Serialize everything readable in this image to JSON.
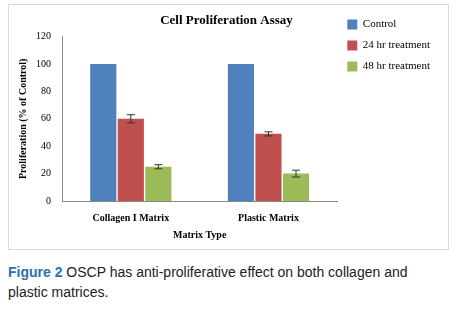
{
  "chart_data": {
    "type": "bar",
    "title": "Cell Proliferation Assay",
    "x_label": "Matrix Type",
    "y_label": "Proliferation (% of Control)",
    "categories": [
      "Collagen I Matrix",
      "Plastic Matrix"
    ],
    "series": [
      {
        "name": "Control",
        "color": "#4f81bd",
        "values": [
          100,
          100
        ]
      },
      {
        "name": "24 hr treatment",
        "color": "#c0504d",
        "values": [
          60,
          49
        ],
        "errors": [
          3,
          1.5
        ]
      },
      {
        "name": "48 hr treatment",
        "color": "#9bbb59",
        "values": [
          25,
          20
        ],
        "errors": [
          1.5,
          2.5
        ]
      }
    ],
    "ylim": [
      0,
      120
    ],
    "yticks": [
      0,
      20,
      40,
      60,
      80,
      100,
      120
    ],
    "grid": false,
    "legend": "right",
    "caption": {
      "label": "Figure 2",
      "text": "OSCP has anti-proliferative effect on both collagen and plastic matrices."
    }
  }
}
